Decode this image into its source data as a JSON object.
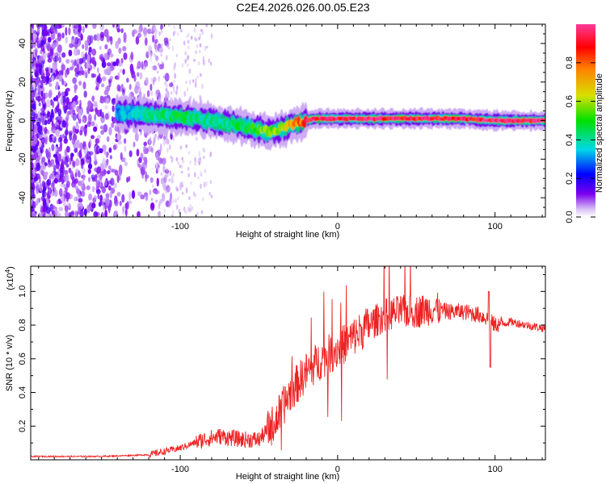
{
  "chart_data": [
    {
      "type": "heatmap",
      "title": "C2E4.2026.026.00.05.E23",
      "xlabel": "Height of straight line (km)",
      "ylabel": "Frequency (Hz)",
      "xlim": [
        -195,
        132
      ],
      "ylim": [
        -50,
        50
      ],
      "xticks": [
        -100,
        0,
        100
      ],
      "xtick_labels": [
        "-100",
        "0",
        "100"
      ],
      "yticks": [
        -40,
        -20,
        0,
        20,
        40
      ],
      "ytick_labels": [
        "-40",
        "-20",
        "0",
        "20",
        "40"
      ],
      "colorbar": {
        "label": "Normalized spectral amplitude",
        "range": [
          0,
          1
        ],
        "ticks": [
          0.0,
          0.2,
          0.4,
          0.6,
          0.8
        ],
        "tick_labels": [
          "0.0",
          "0.2",
          "0.4",
          "0.6",
          "0.8"
        ]
      },
      "ridge": {
        "x": [
          -140,
          -120,
          -100,
          -80,
          -60,
          -45,
          -35,
          -25,
          -15,
          0,
          20,
          40,
          60,
          80,
          100,
          132
        ],
        "y": [
          4,
          3,
          2,
          0,
          -3,
          -6,
          -4,
          -1,
          1,
          1,
          1,
          1,
          1,
          1,
          0,
          0
        ],
        "amplitude": [
          0.3,
          0.4,
          0.45,
          0.4,
          0.45,
          0.55,
          0.6,
          0.75,
          0.95,
          0.98,
          0.98,
          0.97,
          0.9,
          0.92,
          0.98,
          0.97
        ]
      }
    },
    {
      "type": "line",
      "xlabel": "Height of straight line (km)",
      "ylabel": "SNR (10 * v/v)",
      "y_multiplier": "(x10",
      "y_multiplier_exp": "4",
      "y_multiplier_close": ")",
      "xlim": [
        -195,
        132
      ],
      "ylim": [
        0,
        1.15
      ],
      "xticks": [
        -100,
        0,
        100
      ],
      "xtick_labels": [
        "-100",
        "0",
        "100"
      ],
      "yticks": [
        0.2,
        0.4,
        0.6,
        0.8,
        1.0
      ],
      "ytick_labels": [
        "0.2",
        "0.4",
        "0.6",
        "0.8",
        "1.0"
      ],
      "series": [
        {
          "name": "SNR",
          "color": "#ee2222",
          "envelope_x": [
            -195,
            -150,
            -120,
            -100,
            -85,
            -75,
            -60,
            -50,
            -40,
            -30,
            -20,
            -10,
            0,
            10,
            20,
            30,
            40,
            50,
            60,
            70,
            80,
            90,
            95,
            100,
            110,
            120,
            132
          ],
          "envelope_y": [
            0.02,
            0.02,
            0.03,
            0.07,
            0.12,
            0.14,
            0.12,
            0.12,
            0.22,
            0.4,
            0.52,
            0.6,
            0.66,
            0.73,
            0.8,
            0.86,
            0.88,
            0.88,
            0.9,
            0.88,
            0.88,
            0.86,
            0.84,
            0.8,
            0.82,
            0.8,
            0.78
          ]
        }
      ]
    }
  ]
}
